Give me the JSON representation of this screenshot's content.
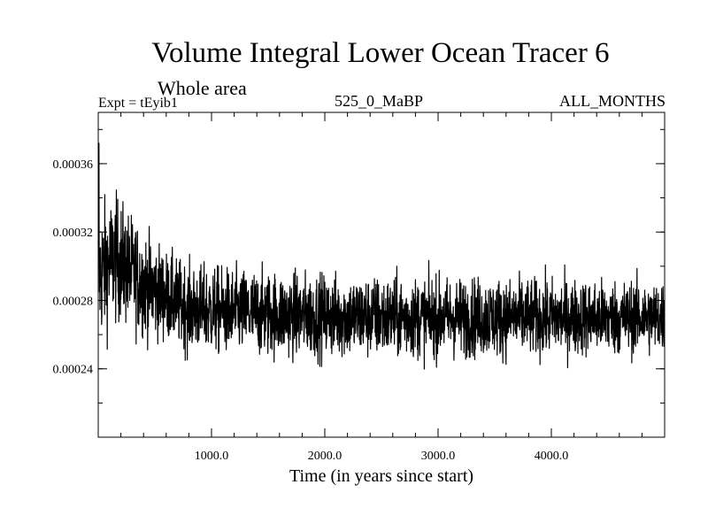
{
  "chart_data": {
    "type": "line",
    "title": "Volume Integral Lower Ocean Tracer 6",
    "subtitle": "Whole area",
    "header_left": "Expt = tEyib1",
    "header_center": "525_0_MaBP",
    "header_right": "ALL_MONTHS",
    "xlabel": "Time (in years since start)",
    "ylabel": "",
    "xlim": [
      0,
      5000
    ],
    "ylim": [
      0.0002,
      0.00039
    ],
    "x_ticks": [
      {
        "value": 1000,
        "label": "1000.0"
      },
      {
        "value": 2000,
        "label": "2000.0"
      },
      {
        "value": 3000,
        "label": "3000.0"
      },
      {
        "value": 4000,
        "label": "4000.0"
      }
    ],
    "y_ticks": [
      {
        "value": 0.00024,
        "label": "0.00024"
      },
      {
        "value": 0.00028,
        "label": "0.00028"
      },
      {
        "value": 0.00032,
        "label": "0.00032"
      },
      {
        "value": 0.00036,
        "label": "0.00036"
      }
    ],
    "series": [
      {
        "name": "Lower Ocean Tracer 6",
        "color": "#000000",
        "x_step": 2,
        "trend": [
          {
            "x": 0,
            "y": 0.000295
          },
          {
            "x": 150,
            "y": 0.000305
          },
          {
            "x": 400,
            "y": 0.00029
          },
          {
            "x": 800,
            "y": 0.000275
          },
          {
            "x": 1500,
            "y": 0.000272
          },
          {
            "x": 2500,
            "y": 0.00027
          },
          {
            "x": 3500,
            "y": 0.00027
          },
          {
            "x": 5000,
            "y": 0.00027
          }
        ],
        "noise_amplitude": [
          {
            "x": 0,
            "y": 2.8e-05
          },
          {
            "x": 600,
            "y": 1.8e-05
          },
          {
            "x": 5000,
            "y": 1.5e-05
          }
        ],
        "peak_value": 0.000372,
        "peak_x": 5
      }
    ]
  }
}
